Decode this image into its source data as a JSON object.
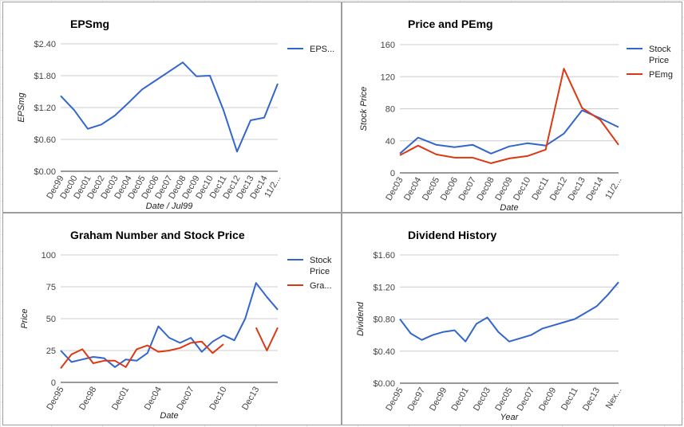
{
  "colors": {
    "blue": "#3366cc",
    "red": "#dc3912",
    "grid": "#cccccc",
    "axis": "#333333"
  },
  "chart_data": [
    {
      "type": "line",
      "title": "EPSmg",
      "xlabel": "Date / Jul99",
      "ylabel": "EPSmg",
      "ylim": [
        0,
        2.4
      ],
      "yticks": [
        "$0.00",
        "$0.60",
        "$1.20",
        "$1.80",
        "$2.40"
      ],
      "yticks_values": [
        0,
        0.6,
        1.2,
        1.8,
        2.4
      ],
      "x_tick_labels": [
        "Dec99",
        "Dec00",
        "Dec01",
        "Dec02",
        "Dec03",
        "Dec04",
        "Dec05",
        "Dec06",
        "Dec07",
        "Dec08",
        "Dec09",
        "Dec10",
        "Dec11",
        "Dec12",
        "Dec13",
        "Dec14",
        "11/2..."
      ],
      "grid": true,
      "legend_position": "right",
      "series": [
        {
          "name": "EPS...",
          "color": "#3366cc",
          "values": [
            1.42,
            1.15,
            0.8,
            0.88,
            1.05,
            1.29,
            1.54,
            1.71,
            1.88,
            2.05,
            1.79,
            1.8,
            1.15,
            0.37,
            0.96,
            1.01,
            1.65
          ]
        }
      ]
    },
    {
      "type": "line",
      "title": "Price and PEmg",
      "xlabel": "Date",
      "ylabel": "Stock Price",
      "ylim": [
        0,
        160
      ],
      "yticks": [
        "0",
        "40",
        "80",
        "120",
        "160"
      ],
      "yticks_values": [
        0,
        40,
        80,
        120,
        160
      ],
      "x_tick_labels": [
        "Dec03",
        "Dec04",
        "Dec05",
        "Dec06",
        "Dec07",
        "Dec08",
        "Dec09",
        "Dec10",
        "Dec11",
        "Dec12",
        "Dec13",
        "Dec14",
        "11/2..."
      ],
      "grid": true,
      "legend_position": "right",
      "series": [
        {
          "name": "Stock Price",
          "color": "#3366cc",
          "values": [
            24,
            44,
            35,
            32,
            35,
            24,
            33,
            37,
            34,
            49,
            78,
            68,
            57
          ]
        },
        {
          "name": "PEmg",
          "color": "#dc3912",
          "values": [
            22,
            34,
            23,
            19,
            19,
            12,
            18,
            21,
            29,
            130,
            81,
            66,
            35
          ]
        }
      ]
    },
    {
      "type": "line",
      "title": "Graham Number and Stock Price",
      "xlabel": "Date",
      "ylabel": "Price",
      "ylim": [
        0,
        100
      ],
      "yticks": [
        "0",
        "25",
        "50",
        "75",
        "100"
      ],
      "yticks_values": [
        0,
        25,
        50,
        75,
        100
      ],
      "x_tick_labels": [
        "Dec95",
        "Dec98",
        "Dec01",
        "Dec04",
        "Dec07",
        "Dec10",
        "Dec13"
      ],
      "x_tick_index": [
        0,
        3,
        6,
        9,
        12,
        15,
        18
      ],
      "grid": true,
      "legend_position": "right",
      "series": [
        {
          "name": "Stock Price",
          "color": "#3366cc",
          "values": [
            25,
            16,
            18,
            20,
            19,
            12,
            18,
            17,
            23,
            44,
            35,
            31,
            35,
            24,
            32,
            37,
            33,
            50,
            78,
            67,
            57
          ]
        },
        {
          "name": "Gra...",
          "color": "#dc3912",
          "values": [
            11,
            22,
            26,
            15,
            17,
            17,
            12,
            26,
            29,
            24,
            25,
            27,
            31,
            32,
            23,
            30,
            null,
            null,
            43,
            25,
            43
          ]
        }
      ]
    },
    {
      "type": "line",
      "title": "Dividend History",
      "xlabel": "Year",
      "ylabel": "Dividend",
      "ylim": [
        0,
        1.6
      ],
      "yticks": [
        "$0.00",
        "$0.40",
        "$0.80",
        "$1.20",
        "$1.60"
      ],
      "yticks_values": [
        0,
        0.4,
        0.8,
        1.2,
        1.6
      ],
      "x_tick_labels": [
        "Dec95",
        "Dec97",
        "Dec99",
        "Dec01",
        "Dec03",
        "Dec05",
        "Dec07",
        "Dec09",
        "Dec11",
        "Dec13",
        "Nex..."
      ],
      "x_tick_index": [
        0,
        2,
        4,
        6,
        8,
        10,
        12,
        14,
        16,
        18,
        20
      ],
      "grid": true,
      "legend_position": "none",
      "series": [
        {
          "name": "",
          "color": "#3366cc",
          "values": [
            0.8,
            0.62,
            0.54,
            0.6,
            0.64,
            0.66,
            0.52,
            0.74,
            0.82,
            0.64,
            0.52,
            0.56,
            0.6,
            0.68,
            0.72,
            0.76,
            0.8,
            0.88,
            0.96,
            1.1,
            1.26
          ]
        }
      ]
    }
  ]
}
